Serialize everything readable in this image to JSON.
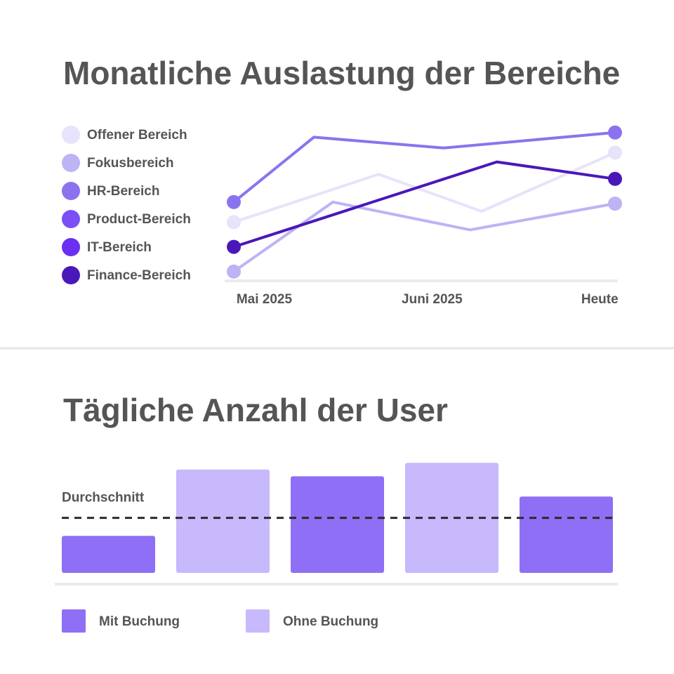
{
  "chart_data": [
    {
      "type": "line",
      "title": "Monatliche Auslastung der Bereiche",
      "xlim": [
        0,
        100
      ],
      "ylim": [
        0,
        100
      ],
      "xticks": [
        {
          "value": 8,
          "label": "Mai 2025"
        },
        {
          "value": 52,
          "label": "Juni 2025"
        },
        {
          "value": 96,
          "label": "Heute"
        }
      ],
      "series": [
        {
          "name": "Offener Bereich",
          "color": "#e6e3fa",
          "x": [
            0,
            38,
            65,
            100
          ],
          "values": [
            38,
            69,
            45,
            83
          ]
        },
        {
          "name": "Fokusbereich",
          "color": "#bcb4f5",
          "x": [
            0,
            26,
            62,
            100
          ],
          "values": [
            6,
            51,
            33,
            50
          ]
        },
        {
          "name": "HR-Bereich",
          "color": "#8b73ef",
          "x": [
            0,
            21,
            55,
            100
          ],
          "values": [
            51,
            93,
            86,
            96
          ]
        },
        {
          "name": "Product-Bereich",
          "color": "#7b4ff5"
        },
        {
          "name": "IT-Bereich",
          "color": "#6a2ff0"
        },
        {
          "name": "Finance-Bereich",
          "color": "#4a18b8",
          "x": [
            0,
            69,
            100
          ],
          "values": [
            22,
            77,
            66
          ]
        }
      ]
    },
    {
      "type": "bar",
      "title": "Tägliche Anzahl der User",
      "categories": [
        null,
        null,
        null,
        null,
        null
      ],
      "ylim": [
        0,
        100
      ],
      "average": {
        "label": "Durchschnitt",
        "value": 49
      },
      "series": [
        {
          "name": "Mit Buchung",
          "color": "#8f6ff5",
          "values": [
            33,
            null,
            86,
            null,
            68
          ]
        },
        {
          "name": "Ohne Buchung",
          "color": "#c8b8fc",
          "values": [
            null,
            92,
            null,
            98,
            null
          ]
        }
      ]
    }
  ]
}
